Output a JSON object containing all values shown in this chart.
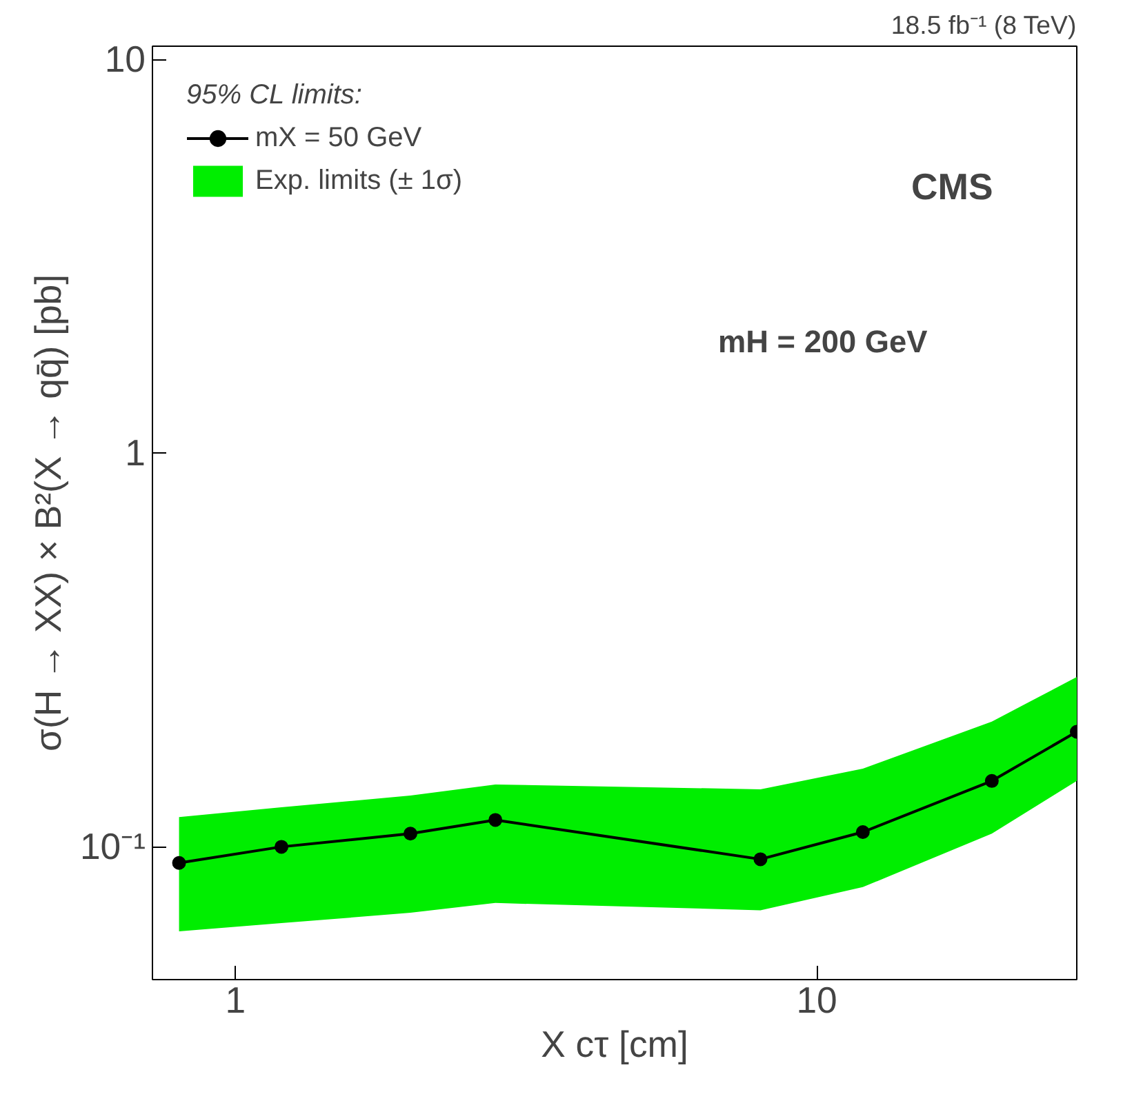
{
  "chart_data": {
    "type": "line",
    "title": "18.5 fb⁻¹ (8 TeV)",
    "xlabel": "X cτ [cm]",
    "ylabel": "σ(H → XX) × B²(X → qq̄) [pb]",
    "legend_title": "95% CL limits:",
    "annotations": [
      "CMS",
      "mH = 200 GeV"
    ],
    "x": [
      0.8,
      1.2,
      2,
      2.8,
      8,
      12,
      20,
      28
    ],
    "series": [
      {
        "name": "mX = 50 GeV",
        "color": "#000000",
        "values": [
          0.091,
          0.1,
          0.108,
          0.117,
          0.093,
          0.109,
          0.147,
          0.196
        ]
      },
      {
        "name": "Exp. limits (± 1σ)",
        "color": "#00ee00",
        "values": [
          null,
          null,
          null,
          null,
          null,
          null,
          null,
          null
        ],
        "lower": [
          0.061,
          0.064,
          0.068,
          0.072,
          0.069,
          0.079,
          0.108,
          0.147
        ],
        "upper": [
          0.119,
          0.126,
          0.135,
          0.144,
          0.14,
          0.158,
          0.208,
          0.27
        ]
      }
    ],
    "log": "xy",
    "xlim": [
      0.72,
      28
    ],
    "ylim": [
      0.046,
      10.8
    ],
    "xticks": [
      1,
      10
    ],
    "yticks": [
      {
        "value": 0.1,
        "label": "10⁻¹"
      },
      1,
      10
    ],
    "marker": "circle",
    "line_style": "solid",
    "legend": "top left",
    "grid": false
  }
}
